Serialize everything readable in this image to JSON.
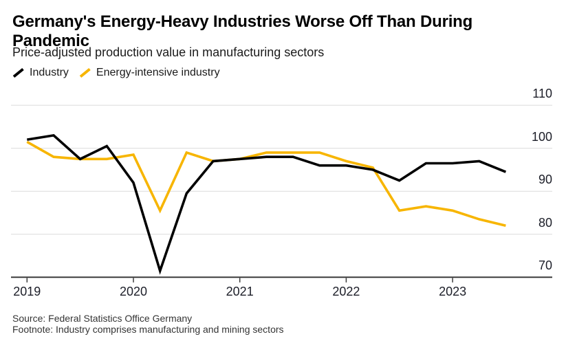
{
  "header": {
    "title": "Germany's Energy-Heavy Industries Worse Off Than During Pandemic",
    "subtitle": "Price-adjusted production value in manufacturing sectors"
  },
  "legend": [
    {
      "label": "Industry",
      "color": "#000000"
    },
    {
      "label": "Energy-intensive industry",
      "color": "#F7B500"
    }
  ],
  "footer": {
    "source": "Source: Federal Statistics Office Germany",
    "footnote": "Footnote: Industry comprises manufacturing and mining sectors"
  },
  "chart_data": {
    "type": "line",
    "title": "Germany's Energy-Heavy Industries Worse Off Than During Pandemic",
    "subtitle": "Price-adjusted production value in manufacturing sectors",
    "x_quarters": [
      "2019-Q1",
      "2019-Q2",
      "2019-Q3",
      "2019-Q4",
      "2020-Q1",
      "2020-Q2",
      "2020-Q3",
      "2020-Q4",
      "2021-Q1",
      "2021-Q2",
      "2021-Q3",
      "2021-Q4",
      "2022-Q1",
      "2022-Q2",
      "2022-Q3",
      "2022-Q4",
      "2023-Q1",
      "2023-Q2",
      "2023-Q3"
    ],
    "x_numeric": [
      2019.0,
      2019.25,
      2019.5,
      2019.75,
      2020.0,
      2020.25,
      2020.5,
      2020.75,
      2021.0,
      2021.25,
      2021.5,
      2021.75,
      2022.0,
      2022.25,
      2022.5,
      2022.75,
      2023.0,
      2023.25,
      2023.5
    ],
    "series": [
      {
        "name": "Industry",
        "color": "#000000",
        "values": [
          102,
          103,
          97.5,
          100.5,
          92,
          71.5,
          89.5,
          97,
          97.5,
          98,
          98,
          96,
          96,
          95,
          92.5,
          96.5,
          96.5,
          97,
          94.5
        ]
      },
      {
        "name": "Energy-intensive industry",
        "color": "#F7B500",
        "values": [
          101.5,
          98,
          97.5,
          97.5,
          98.5,
          85.5,
          99,
          97,
          97.5,
          99,
          99,
          99,
          97,
          95.5,
          85.5,
          86.5,
          85.5,
          83.5,
          82
        ]
      }
    ],
    "y_ticks": [
      70,
      80,
      90,
      100,
      110
    ],
    "x_ticks": [
      2019,
      2020,
      2021,
      2022,
      2023
    ],
    "x_tick_labels": [
      "2019",
      "2020",
      "2021",
      "2022",
      "2023"
    ],
    "ylim": [
      70,
      112
    ],
    "xlim": [
      2018.85,
      2023.94
    ],
    "grid": "horizontal",
    "legend_position": "top-left",
    "colors": {
      "grid": "#DBDBDB",
      "axis": "#3A3A3A",
      "tick_label": "#1c1e28"
    }
  }
}
